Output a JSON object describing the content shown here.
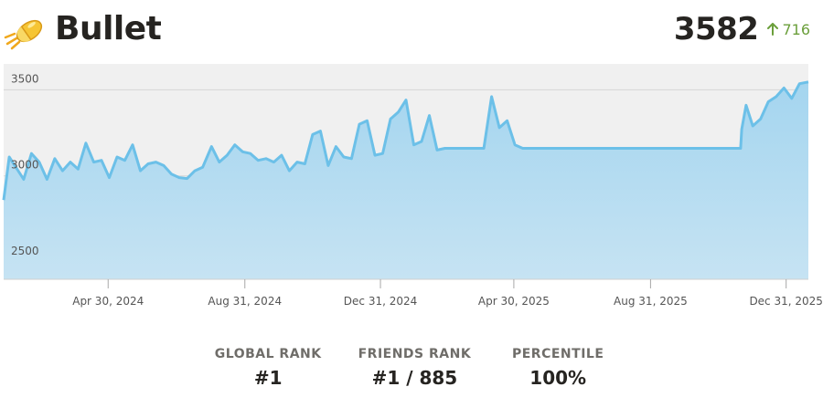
{
  "header": {
    "title": "Bullet",
    "logo_icon": "bullet-icon",
    "rating": "3582",
    "change_icon": "arrow-up-icon",
    "change": "716"
  },
  "colors": {
    "accent": "#6cc0e8",
    "fill_top": "#a4d5ef",
    "fill_bottom": "#c6e3f3",
    "plot_bg": "#f0f0f0",
    "positive": "#6b9f3b"
  },
  "chart_data": {
    "type": "area",
    "title": "",
    "xlabel": "",
    "ylabel": "",
    "ylim": [
      2400,
      3650
    ],
    "y_ticks": [
      2500,
      3000,
      3500
    ],
    "grid": true,
    "x_ticks": [
      "Apr 30, 2024",
      "Aug 31, 2024",
      "Dec 31, 2024",
      "Apr 30, 2025",
      "Aug 31, 2025",
      "Dec 31, 2025"
    ],
    "x_tick_dates": [
      "2024-04-30",
      "2024-08-31",
      "2024-12-31",
      "2025-04-30",
      "2025-08-31",
      "2025-12-31"
    ],
    "x_range": [
      "2024-01-27",
      "2026-01-20"
    ],
    "series": [
      {
        "x": [
          "2024-01-27",
          "2024-02-01",
          "2024-02-07",
          "2024-02-14",
          "2024-02-21",
          "2024-02-28",
          "2024-03-06",
          "2024-03-13",
          "2024-03-20",
          "2024-03-27",
          "2024-04-03",
          "2024-04-10",
          "2024-04-17",
          "2024-04-24",
          "2024-05-01",
          "2024-05-08",
          "2024-05-15",
          "2024-05-22",
          "2024-05-29",
          "2024-06-05",
          "2024-06-12",
          "2024-06-19",
          "2024-06-26",
          "2024-07-03",
          "2024-07-10",
          "2024-07-17",
          "2024-07-24",
          "2024-08-01",
          "2024-08-08",
          "2024-08-15",
          "2024-08-22",
          "2024-08-29",
          "2024-09-05",
          "2024-09-12",
          "2024-09-19",
          "2024-09-26",
          "2024-10-03",
          "2024-10-10",
          "2024-10-17",
          "2024-10-24",
          "2024-10-31",
          "2024-11-07",
          "2024-11-14",
          "2024-11-21",
          "2024-11-28",
          "2024-12-05",
          "2024-12-12",
          "2024-12-19",
          "2024-12-26",
          "2025-01-02",
          "2025-01-09",
          "2025-01-16",
          "2025-01-23",
          "2025-01-30",
          "2025-02-06",
          "2025-02-13",
          "2025-02-20",
          "2025-02-27",
          "2025-03-06",
          "2025-03-13",
          "2025-03-20",
          "2025-03-27",
          "2025-04-03",
          "2025-04-10",
          "2025-04-17",
          "2025-04-24",
          "2025-05-01",
          "2025-05-08",
          "2025-05-15",
          "2025-05-22",
          "2025-05-29",
          "2025-06-05",
          "2025-06-12",
          "2025-06-19",
          "2025-06-26",
          "2025-07-31",
          "2025-08-31",
          "2025-09-30",
          "2025-10-31",
          "2025-11-20",
          "2025-11-21",
          "2025-11-25",
          "2025-12-01",
          "2025-12-08",
          "2025-12-15",
          "2025-12-22",
          "2025-12-29",
          "2026-01-05",
          "2026-01-12",
          "2026-01-20"
        ],
        "y": [
          2860,
          3110,
          3050,
          2980,
          3130,
          3080,
          2980,
          3100,
          3030,
          3080,
          3040,
          3190,
          3080,
          3090,
          2990,
          3110,
          3090,
          3180,
          3030,
          3070,
          3080,
          3060,
          3010,
          2990,
          2985,
          3030,
          3050,
          3170,
          3080,
          3120,
          3180,
          3140,
          3130,
          3090,
          3100,
          3080,
          3120,
          3030,
          3080,
          3070,
          3240,
          3260,
          3060,
          3170,
          3110,
          3100,
          3300,
          3320,
          3120,
          3130,
          3330,
          3370,
          3440,
          3180,
          3200,
          3350,
          3150,
          3160,
          3160,
          3160,
          3160,
          3160,
          3160,
          3460,
          3280,
          3320,
          3180,
          3160,
          3160,
          3160,
          3160,
          3160,
          3160,
          3160,
          3160,
          3160,
          3160,
          3160,
          3160,
          3160,
          3270,
          3410,
          3290,
          3330,
          3430,
          3460,
          3510,
          3450,
          3535,
          3545
        ]
      }
    ]
  },
  "stats": [
    {
      "label": "GLOBAL RANK",
      "value": "#1"
    },
    {
      "label": "FRIENDS RANK",
      "value": "#1 / 885"
    },
    {
      "label": "PERCENTILE",
      "value": "100%"
    }
  ]
}
